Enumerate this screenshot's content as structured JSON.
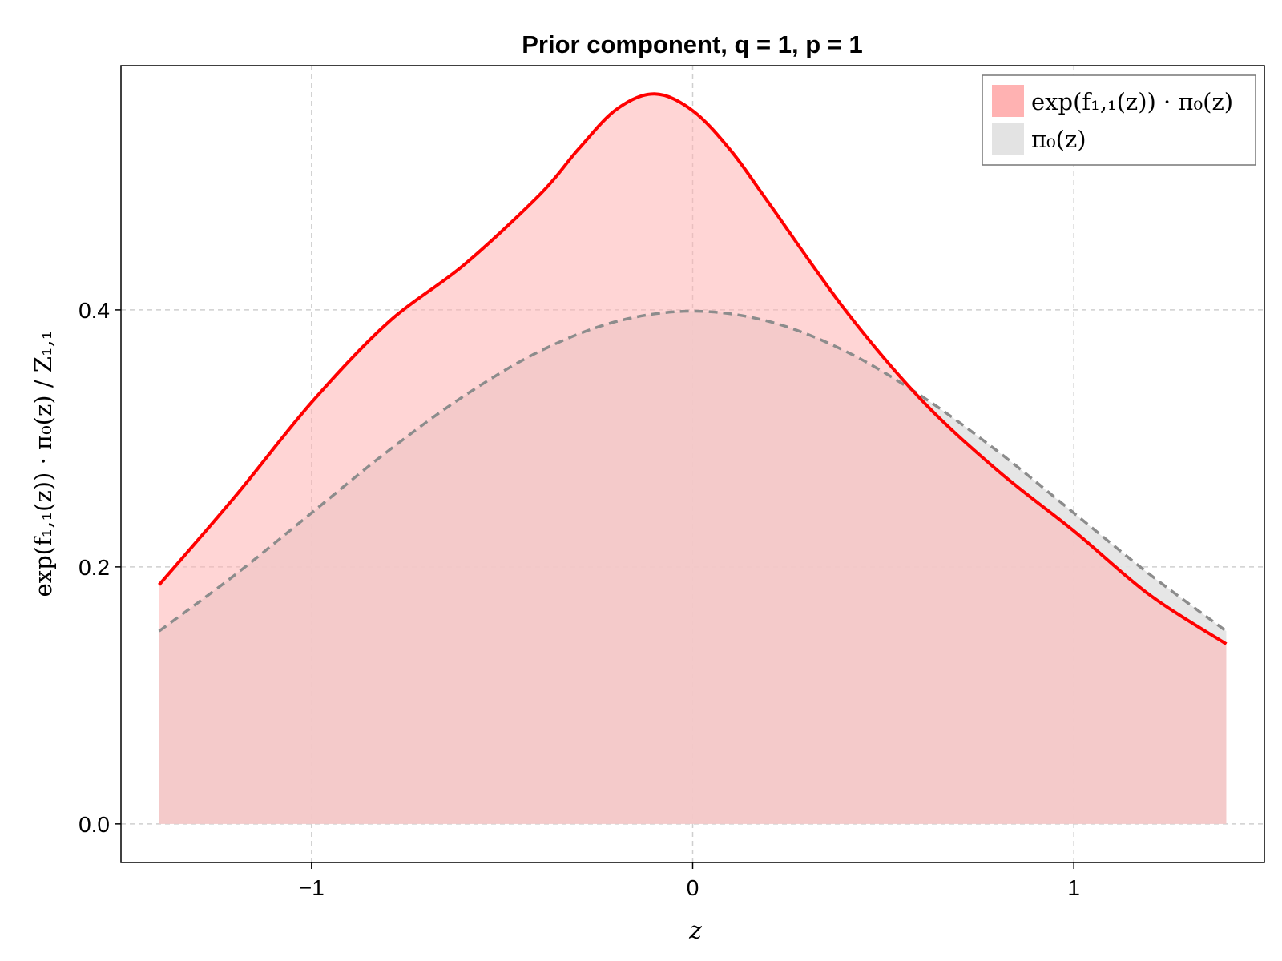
{
  "chart_data": {
    "type": "area",
    "title": "Prior component, q = 1, p = 1",
    "xlabel": "z",
    "ylabel": "exp(f₁,₁(z)) · π₀(z) / Z₁,₁",
    "xlim": [
      -1.5,
      1.5
    ],
    "ylim": [
      -0.03,
      0.59
    ],
    "x_ticks": [
      -1,
      0,
      1
    ],
    "x_tick_labels": [
      "−1",
      "0",
      "1"
    ],
    "y_ticks": [
      0.0,
      0.2,
      0.4
    ],
    "y_tick_labels": [
      "0.0",
      "0.2",
      "0.4"
    ],
    "grid": true,
    "legend_position": "top-right",
    "series": [
      {
        "name": "exp(f₁,₁(z)) · π₀(z)",
        "color": "#ff0000",
        "fill": "#ffb2b2",
        "line_style": "solid",
        "x": [
          -1.4,
          -1.2,
          -1.0,
          -0.8,
          -0.6,
          -0.4,
          -0.3,
          -0.2,
          -0.1,
          0.0,
          0.1,
          0.2,
          0.4,
          0.6,
          0.8,
          1.0,
          1.2,
          1.4
        ],
        "values": [
          0.186,
          0.255,
          0.328,
          0.39,
          0.435,
          0.49,
          0.525,
          0.556,
          0.568,
          0.555,
          0.524,
          0.483,
          0.4,
          0.33,
          0.275,
          0.228,
          0.178,
          0.14
        ]
      },
      {
        "name": "π₀(z)",
        "color": "#8c8c8c",
        "fill": "#e3e3e3",
        "line_style": "dashed",
        "x": [
          -1.4,
          -1.2,
          -1.0,
          -0.8,
          -0.6,
          -0.4,
          -0.2,
          0.0,
          0.2,
          0.4,
          0.6,
          0.8,
          1.0,
          1.2,
          1.4
        ],
        "values": [
          0.15,
          0.194,
          0.242,
          0.29,
          0.333,
          0.368,
          0.391,
          0.399,
          0.391,
          0.368,
          0.333,
          0.29,
          0.242,
          0.194,
          0.15
        ]
      }
    ]
  }
}
